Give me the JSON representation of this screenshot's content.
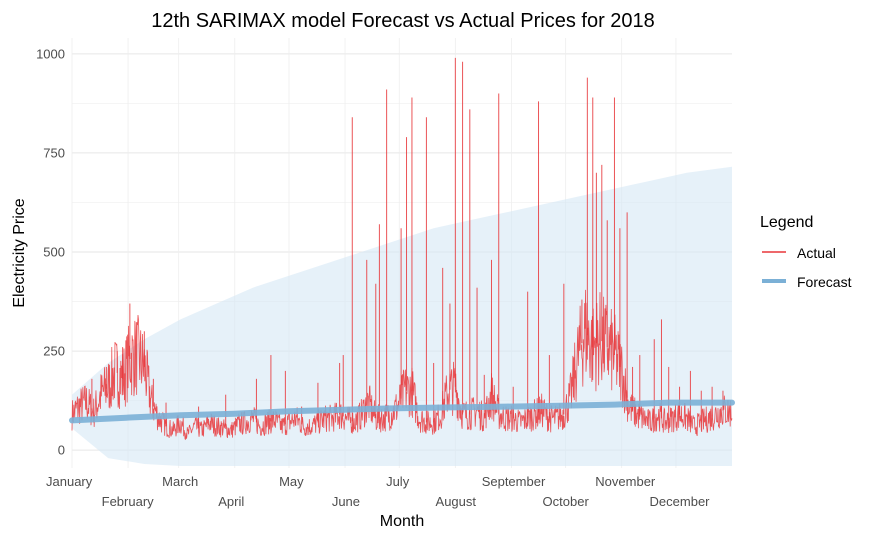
{
  "chart_data": {
    "type": "line",
    "title": "12th SARIMAX model Forecast vs Actual Prices for 2018",
    "xlabel": "Month",
    "ylabel": "Electricity Price",
    "ylim": [
      -45,
      1040
    ],
    "xlim": [
      0,
      365
    ],
    "yticks": [
      0,
      250,
      500,
      750,
      1000
    ],
    "x_month_labels": [
      "January",
      "February",
      "March",
      "April",
      "May",
      "June",
      "July",
      "August",
      "September",
      "October",
      "November",
      "December"
    ],
    "x_month_days": [
      0,
      31,
      59,
      90,
      120,
      151,
      181,
      212,
      243,
      273,
      304,
      334
    ],
    "grid": true,
    "legend": {
      "title": "Legend",
      "position": "right",
      "entries": [
        {
          "label": "Actual",
          "color": "#e8363a"
        },
        {
          "label": "Forecast",
          "color": "#7bb0d6"
        }
      ]
    },
    "series": [
      {
        "name": "Actual",
        "color": "#e8363a",
        "x": [
          0,
          4,
          8,
          12,
          16,
          20,
          24,
          28,
          32,
          36,
          40,
          44,
          48,
          52,
          56,
          60,
          64,
          68,
          72,
          76,
          80,
          84,
          88,
          92,
          96,
          100,
          104,
          108,
          112,
          116,
          120,
          124,
          128,
          132,
          136,
          140,
          144,
          148,
          152,
          156,
          160,
          164,
          168,
          172,
          176,
          180,
          184,
          188,
          192,
          196,
          200,
          204,
          208,
          212,
          216,
          220,
          224,
          228,
          232,
          236,
          240,
          244,
          248,
          252,
          256,
          260,
          264,
          268,
          272,
          276,
          280,
          284,
          288,
          292,
          296,
          300,
          304,
          308,
          312,
          316,
          320,
          324,
          328,
          332,
          336,
          340,
          344,
          348,
          352,
          356,
          360,
          365
        ],
        "y": [
          90,
          110,
          120,
          95,
          140,
          160,
          200,
          180,
          230,
          240,
          210,
          120,
          80,
          60,
          50,
          70,
          40,
          60,
          50,
          70,
          60,
          55,
          50,
          65,
          70,
          80,
          60,
          70,
          75,
          60,
          70,
          80,
          60,
          60,
          70,
          80,
          80,
          90,
          80,
          70,
          90,
          120,
          80,
          80,
          90,
          110,
          150,
          150,
          80,
          70,
          70,
          90,
          150,
          160,
          90,
          90,
          100,
          80,
          140,
          90,
          80,
          80,
          70,
          80,
          90,
          100,
          80,
          80,
          90,
          140,
          240,
          300,
          260,
          280,
          260,
          240,
          200,
          110,
          90,
          80,
          70,
          90,
          70,
          80,
          90,
          80,
          60,
          70,
          80,
          90,
          100,
          95
        ]
      },
      {
        "name": "Actual spikes",
        "color": "#e8363a",
        "x": [
          11,
          19,
          25,
          28,
          32,
          40,
          45,
          52,
          70,
          85,
          102,
          110,
          118,
          127,
          136,
          148,
          150,
          155,
          163,
          168,
          170,
          174,
          182,
          185,
          188,
          196,
          200,
          205,
          209,
          212,
          216,
          220,
          224,
          228,
          232,
          236,
          244,
          252,
          258,
          264,
          272,
          282,
          285,
          288,
          290,
          293,
          296,
          300,
          303,
          307,
          310,
          314,
          322,
          326,
          330,
          336,
          342,
          348,
          354,
          360
        ],
        "y": [
          180,
          210,
          250,
          260,
          370,
          300,
          180,
          120,
          110,
          140,
          180,
          240,
          200,
          110,
          170,
          220,
          240,
          840,
          480,
          420,
          570,
          910,
          560,
          790,
          890,
          840,
          220,
          460,
          370,
          990,
          980,
          860,
          410,
          190,
          480,
          900,
          160,
          400,
          880,
          240,
          420,
          380,
          940,
          890,
          700,
          720,
          580,
          890,
          560,
          600,
          210,
          240,
          280,
          330,
          210,
          160,
          200,
          150,
          160,
          150
        ]
      },
      {
        "name": "Forecast",
        "color": "#7bb0d6",
        "x": [
          0,
          30,
          60,
          90,
          120,
          150,
          180,
          210,
          240,
          270,
          300,
          330,
          365
        ],
        "y": [
          75,
          82,
          88,
          92,
          98,
          102,
          106,
          108,
          110,
          112,
          115,
          120,
          120
        ]
      },
      {
        "name": "Forecast interval",
        "color": "#d6e8f5",
        "x": [
          0,
          20,
          40,
          60,
          80,
          100,
          120,
          140,
          160,
          180,
          200,
          220,
          240,
          260,
          280,
          300,
          320,
          340,
          365
        ],
        "lower": [
          55,
          -20,
          -35,
          -40,
          -40,
          -40,
          -40,
          -40,
          -40,
          -40,
          -40,
          -40,
          -40,
          -40,
          -40,
          -40,
          -40,
          -40,
          -40
        ],
        "upper": [
          140,
          220,
          280,
          330,
          370,
          410,
          440,
          470,
          500,
          530,
          560,
          580,
          600,
          620,
          640,
          660,
          680,
          700,
          715
        ]
      }
    ]
  }
}
